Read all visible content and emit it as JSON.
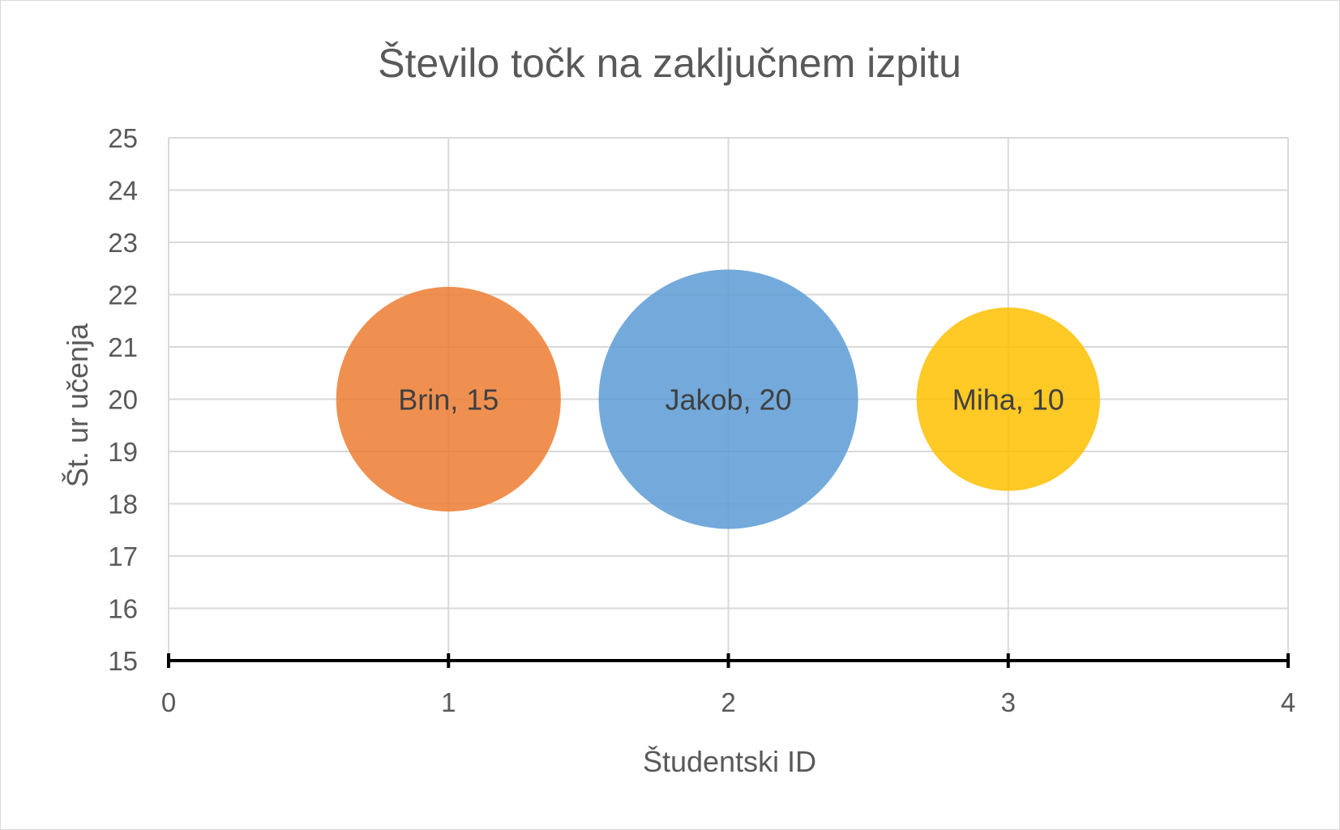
{
  "chart_data": {
    "type": "bubble",
    "title": "Število točk na zaključnem izpitu",
    "xlabel": "Študentski ID",
    "ylabel": "Št. ur učenja",
    "xlim": [
      0,
      4
    ],
    "ylim": [
      15,
      25
    ],
    "x_ticks": [
      0,
      1,
      2,
      3,
      4
    ],
    "y_ticks": [
      15,
      16,
      17,
      18,
      19,
      20,
      21,
      22,
      23,
      24,
      25
    ],
    "grid": true,
    "legend": "none",
    "points": [
      {
        "label": "Brin, 15",
        "x": 1,
        "y": 20,
        "size": 15,
        "color": "#ED7D31"
      },
      {
        "label": "Jakob, 20",
        "x": 2,
        "y": 20,
        "size": 20,
        "color": "#5B9BD5"
      },
      {
        "label": "Miha, 10",
        "x": 3,
        "y": 20,
        "size": 10,
        "color": "#FFC000"
      }
    ]
  },
  "colors": {
    "gridline": "#d9d9d9",
    "axis_line": "#000000",
    "text": "#595959"
  }
}
